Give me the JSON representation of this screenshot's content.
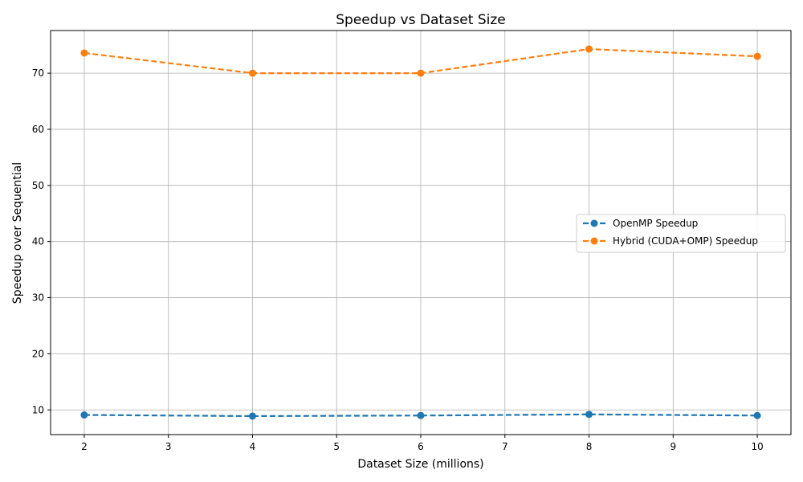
{
  "chart_data": {
    "type": "line",
    "title": "Speedup vs Dataset Size",
    "xlabel": "Dataset Size (millions)",
    "ylabel": "Speedup over Sequential",
    "x": [
      2,
      4,
      6,
      8,
      10
    ],
    "xlim": [
      1.6,
      10.4
    ],
    "ylim": [
      5.6,
      77.6
    ],
    "xticks": [
      2,
      3,
      4,
      5,
      6,
      7,
      8,
      9,
      10
    ],
    "yticks": [
      10,
      20,
      30,
      40,
      50,
      60,
      70
    ],
    "grid": true,
    "legend_position": "center-right",
    "series": [
      {
        "name": "OpenMP Speedup",
        "values": [
          9.1,
          8.9,
          9.0,
          9.2,
          9.0
        ],
        "color": "#1f77b4",
        "linestyle": "dashed",
        "marker": "circle"
      },
      {
        "name": "Hybrid (CUDA+OMP) Speedup",
        "values": [
          73.6,
          70.0,
          70.0,
          74.3,
          73.0
        ],
        "color": "#ff7f0e",
        "linestyle": "dashed",
        "marker": "circle"
      }
    ]
  }
}
